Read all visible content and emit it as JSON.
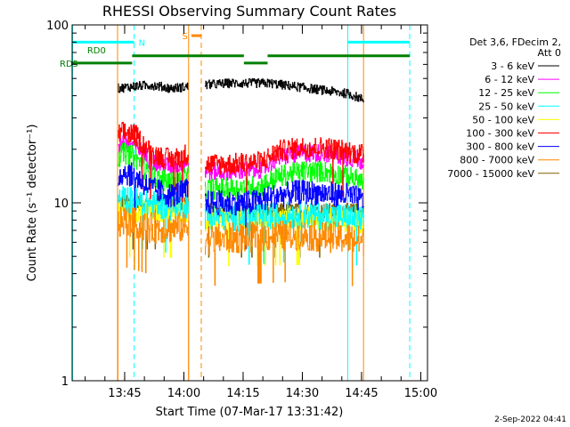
{
  "chart_data": {
    "type": "line",
    "title": "RHESSI Observing Summary Count Rates",
    "xlabel": "Start Time (07-Mar-17 13:31:42)",
    "ylabel": "Count Rate (s⁻¹ detector⁻¹)",
    "yscale": "log",
    "ylim": [
      1,
      100
    ],
    "xlim_minutes": [
      0,
      90
    ],
    "x_ticks": [
      {
        "label": "13:45",
        "minute": 13.3
      },
      {
        "label": "14:00",
        "minute": 28.3
      },
      {
        "label": "14:15",
        "minute": 43.3
      },
      {
        "label": "14:30",
        "minute": 58.3
      },
      {
        "label": "14:45",
        "minute": 73.3
      },
      {
        "label": "15:00",
        "minute": 88.3
      }
    ],
    "y_ticks": [
      {
        "label": "1",
        "value": 1
      },
      {
        "label": "10",
        "value": 10
      },
      {
        "label": "100",
        "value": 100
      }
    ],
    "legend_header": [
      "Det 3,6, FDecim 2,",
      "Att 0"
    ],
    "legend_position": "right",
    "data_gaps_minutes": [
      [
        0,
        11.6
      ],
      [
        29.5,
        33.5
      ],
      [
        73.8,
        90
      ]
    ],
    "vlines": [
      {
        "minute": 0.1,
        "color": "#00ffff",
        "style": "solid"
      },
      {
        "minute": 15.7,
        "color": "#00ffff",
        "style": "dashed"
      },
      {
        "minute": 69.8,
        "color": "#00ffff",
        "style": "solid"
      },
      {
        "minute": 85.5,
        "color": "#00ffff",
        "style": "dashed"
      },
      {
        "minute": 29.5,
        "color": "#ff8800",
        "style": "solid"
      },
      {
        "minute": 32.7,
        "color": "#ff8800",
        "style": "dashed"
      },
      {
        "minute": 11.5,
        "color": "#ff8800",
        "style": "solid"
      },
      {
        "minute": 73.8,
        "color": "#ff8800",
        "style": "solid"
      }
    ],
    "flag_bars": [
      {
        "label": "N",
        "color": "#00ffff",
        "segments": [
          [
            0,
            15.7
          ],
          [
            69.8,
            85.5
          ]
        ],
        "level": 80
      },
      {
        "label": "S",
        "color": "#ff8800",
        "segments": [
          [
            30.2,
            32.7
          ]
        ],
        "level": 87
      },
      {
        "label": "RD0",
        "color": "#008000",
        "segments": [
          [
            15.2,
            43.5
          ],
          [
            49.5,
            85.5
          ]
        ],
        "level": 67
      },
      {
        "label": "RD5",
        "color": "#008000",
        "segments": [
          [
            0,
            15.2
          ],
          [
            43.5,
            49.5
          ]
        ],
        "level": 61
      }
    ],
    "series": [
      {
        "name": "3 - 6 keV",
        "color": "#000000",
        "values": [
          [
            11.6,
            44
          ],
          [
            15,
            45
          ],
          [
            20,
            46
          ],
          [
            25,
            44
          ],
          [
            29.5,
            45
          ],
          [
            33.5,
            46
          ],
          [
            40,
            47
          ],
          [
            50,
            47
          ],
          [
            60,
            44
          ],
          [
            70,
            41
          ],
          [
            73.8,
            38
          ]
        ]
      },
      {
        "name": "6 - 12 keV",
        "color": "#ff00ff",
        "values": [
          [
            11.6,
            21
          ],
          [
            13,
            22
          ],
          [
            16,
            21
          ],
          [
            20,
            17
          ],
          [
            25,
            16
          ],
          [
            29.5,
            17
          ],
          [
            33.5,
            15
          ],
          [
            40,
            15
          ],
          [
            48,
            15.5
          ],
          [
            52,
            18
          ],
          [
            58,
            19
          ],
          [
            64,
            19
          ],
          [
            70,
            18
          ],
          [
            73.8,
            17
          ]
        ]
      },
      {
        "name": "12 - 25 keV",
        "color": "#00ff00",
        "values": [
          [
            11.6,
            18
          ],
          [
            13,
            19
          ],
          [
            16,
            18
          ],
          [
            20,
            14
          ],
          [
            25,
            13
          ],
          [
            29.5,
            14
          ],
          [
            33.5,
            12
          ],
          [
            40,
            12
          ],
          [
            48,
            12.5
          ],
          [
            52,
            14
          ],
          [
            58,
            15
          ],
          [
            64,
            15
          ],
          [
            70,
            14
          ],
          [
            73.8,
            13
          ]
        ]
      },
      {
        "name": "25 - 50 keV",
        "color": "#00ffff",
        "values": [
          [
            11.6,
            10
          ],
          [
            13,
            10.5
          ],
          [
            18,
            10
          ],
          [
            25,
            9.5
          ],
          [
            29.5,
            9.8
          ],
          [
            33.5,
            8.5
          ],
          [
            45,
            8.2
          ],
          [
            58,
            8.6
          ],
          [
            70,
            8.3
          ],
          [
            73.8,
            8
          ]
        ]
      },
      {
        "name": "50 - 100 keV",
        "color": "#ffff00",
        "values": [
          [
            11.6,
            9
          ],
          [
            20,
            9
          ],
          [
            29.5,
            9
          ],
          [
            33.5,
            8
          ],
          [
            60,
            8.2
          ],
          [
            73.8,
            7.8
          ]
        ]
      },
      {
        "name": "100 - 300 keV",
        "color": "#ff0000",
        "values": [
          [
            11.6,
            24
          ],
          [
            13,
            25
          ],
          [
            16,
            24
          ],
          [
            20,
            19
          ],
          [
            25,
            17.5
          ],
          [
            29.5,
            19
          ],
          [
            33.5,
            16.5
          ],
          [
            40,
            16.5
          ],
          [
            48,
            17
          ],
          [
            52,
            19.5
          ],
          [
            58,
            20.5
          ],
          [
            64,
            20.5
          ],
          [
            70,
            19.5
          ],
          [
            73.8,
            18.5
          ]
        ]
      },
      {
        "name": "300 - 800 keV",
        "color": "#0000ff",
        "values": [
          [
            11.6,
            14
          ],
          [
            13,
            15
          ],
          [
            16,
            14
          ],
          [
            20,
            12
          ],
          [
            25,
            11
          ],
          [
            29.5,
            11.8
          ],
          [
            33.5,
            10
          ],
          [
            45,
            10
          ],
          [
            52,
            11
          ],
          [
            58,
            11.5
          ],
          [
            64,
            11.3
          ],
          [
            70,
            11
          ],
          [
            73.8,
            10.3
          ]
        ]
      },
      {
        "name": "800 - 7000 keV",
        "color": "#ff8800",
        "values": [
          [
            11.6,
            7.5
          ],
          [
            13,
            8
          ],
          [
            20,
            7.2
          ],
          [
            29.5,
            7.3
          ],
          [
            33.5,
            6.2
          ],
          [
            45,
            6.4
          ],
          [
            58,
            6.6
          ],
          [
            70,
            6.3
          ],
          [
            73.8,
            6
          ]
        ]
      },
      {
        "name": "7000 - 15000 keV",
        "color": "#806000",
        "values": [
          [
            11.6,
            10
          ],
          [
            20,
            10
          ],
          [
            29.5,
            10
          ],
          [
            33.5,
            9
          ],
          [
            73.8,
            9
          ]
        ]
      }
    ]
  },
  "timestamp": "2-Sep-2022 04:41"
}
